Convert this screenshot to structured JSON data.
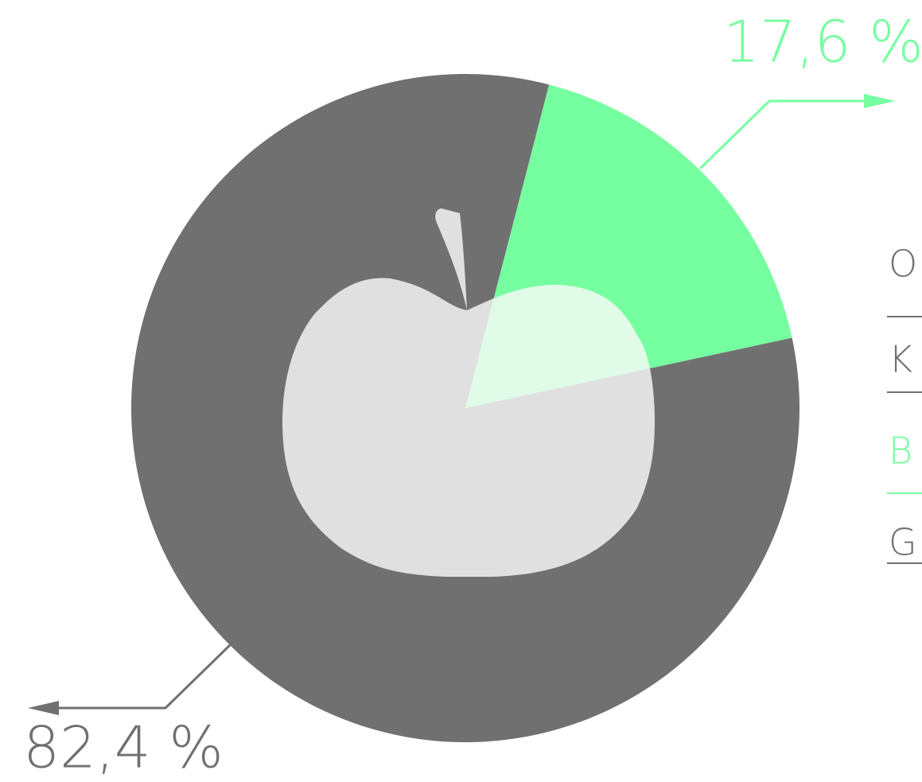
{
  "chart_data": {
    "type": "pie",
    "categories": [
      null,
      null
    ],
    "values": [
      17.6,
      82.4
    ],
    "value_labels": [
      "17,6 %",
      "82,4 %"
    ],
    "colors": [
      "#76ffa0",
      "#707070"
    ]
  },
  "menu": [
    "O",
    "K",
    "B",
    "G"
  ]
}
